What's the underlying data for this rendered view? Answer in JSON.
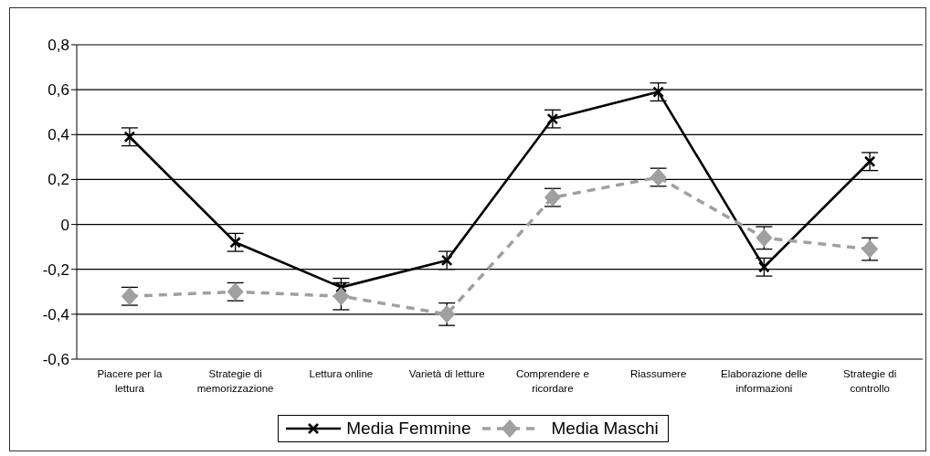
{
  "chart_data": {
    "type": "line",
    "categories": [
      "Piacere per la lettura",
      "Strategie di memorizzazione",
      "Lettura online",
      "Varietà di letture",
      "Comprendere e ricordare",
      "Riassumere",
      "Elaborazione delle informazioni",
      "Strategie di controllo"
    ],
    "series": [
      {
        "name": "Media Femmine",
        "color": "#000000",
        "marker": "cross",
        "line_style": "solid",
        "values": [
          0.39,
          -0.08,
          -0.28,
          -0.16,
          0.47,
          0.59,
          -0.19,
          0.28
        ],
        "errors": [
          0.04,
          0.04,
          0.04,
          0.04,
          0.04,
          0.04,
          0.04,
          0.04
        ]
      },
      {
        "name": "Media Maschi",
        "color": "#a0a0a0",
        "marker": "diamond",
        "line_style": "dashed",
        "values": [
          -0.32,
          -0.3,
          -0.32,
          -0.4,
          0.12,
          0.21,
          -0.06,
          -0.11
        ],
        "errors": [
          0.04,
          0.04,
          0.06,
          0.05,
          0.04,
          0.04,
          0.05,
          0.05
        ]
      }
    ],
    "ylim": [
      -0.6,
      0.8
    ],
    "yticks": [
      {
        "value": -0.6,
        "label": "-0,6"
      },
      {
        "value": -0.4,
        "label": "-0,4"
      },
      {
        "value": -0.2,
        "label": "-0,2"
      },
      0,
      {
        "value": 0.2,
        "label": "0,2"
      },
      {
        "value": 0.4,
        "label": "0,4"
      },
      {
        "value": 0.6,
        "label": "0,6"
      },
      {
        "value": 0.8,
        "label": "0,8"
      }
    ],
    "grid": "y",
    "legend": "bottom"
  }
}
